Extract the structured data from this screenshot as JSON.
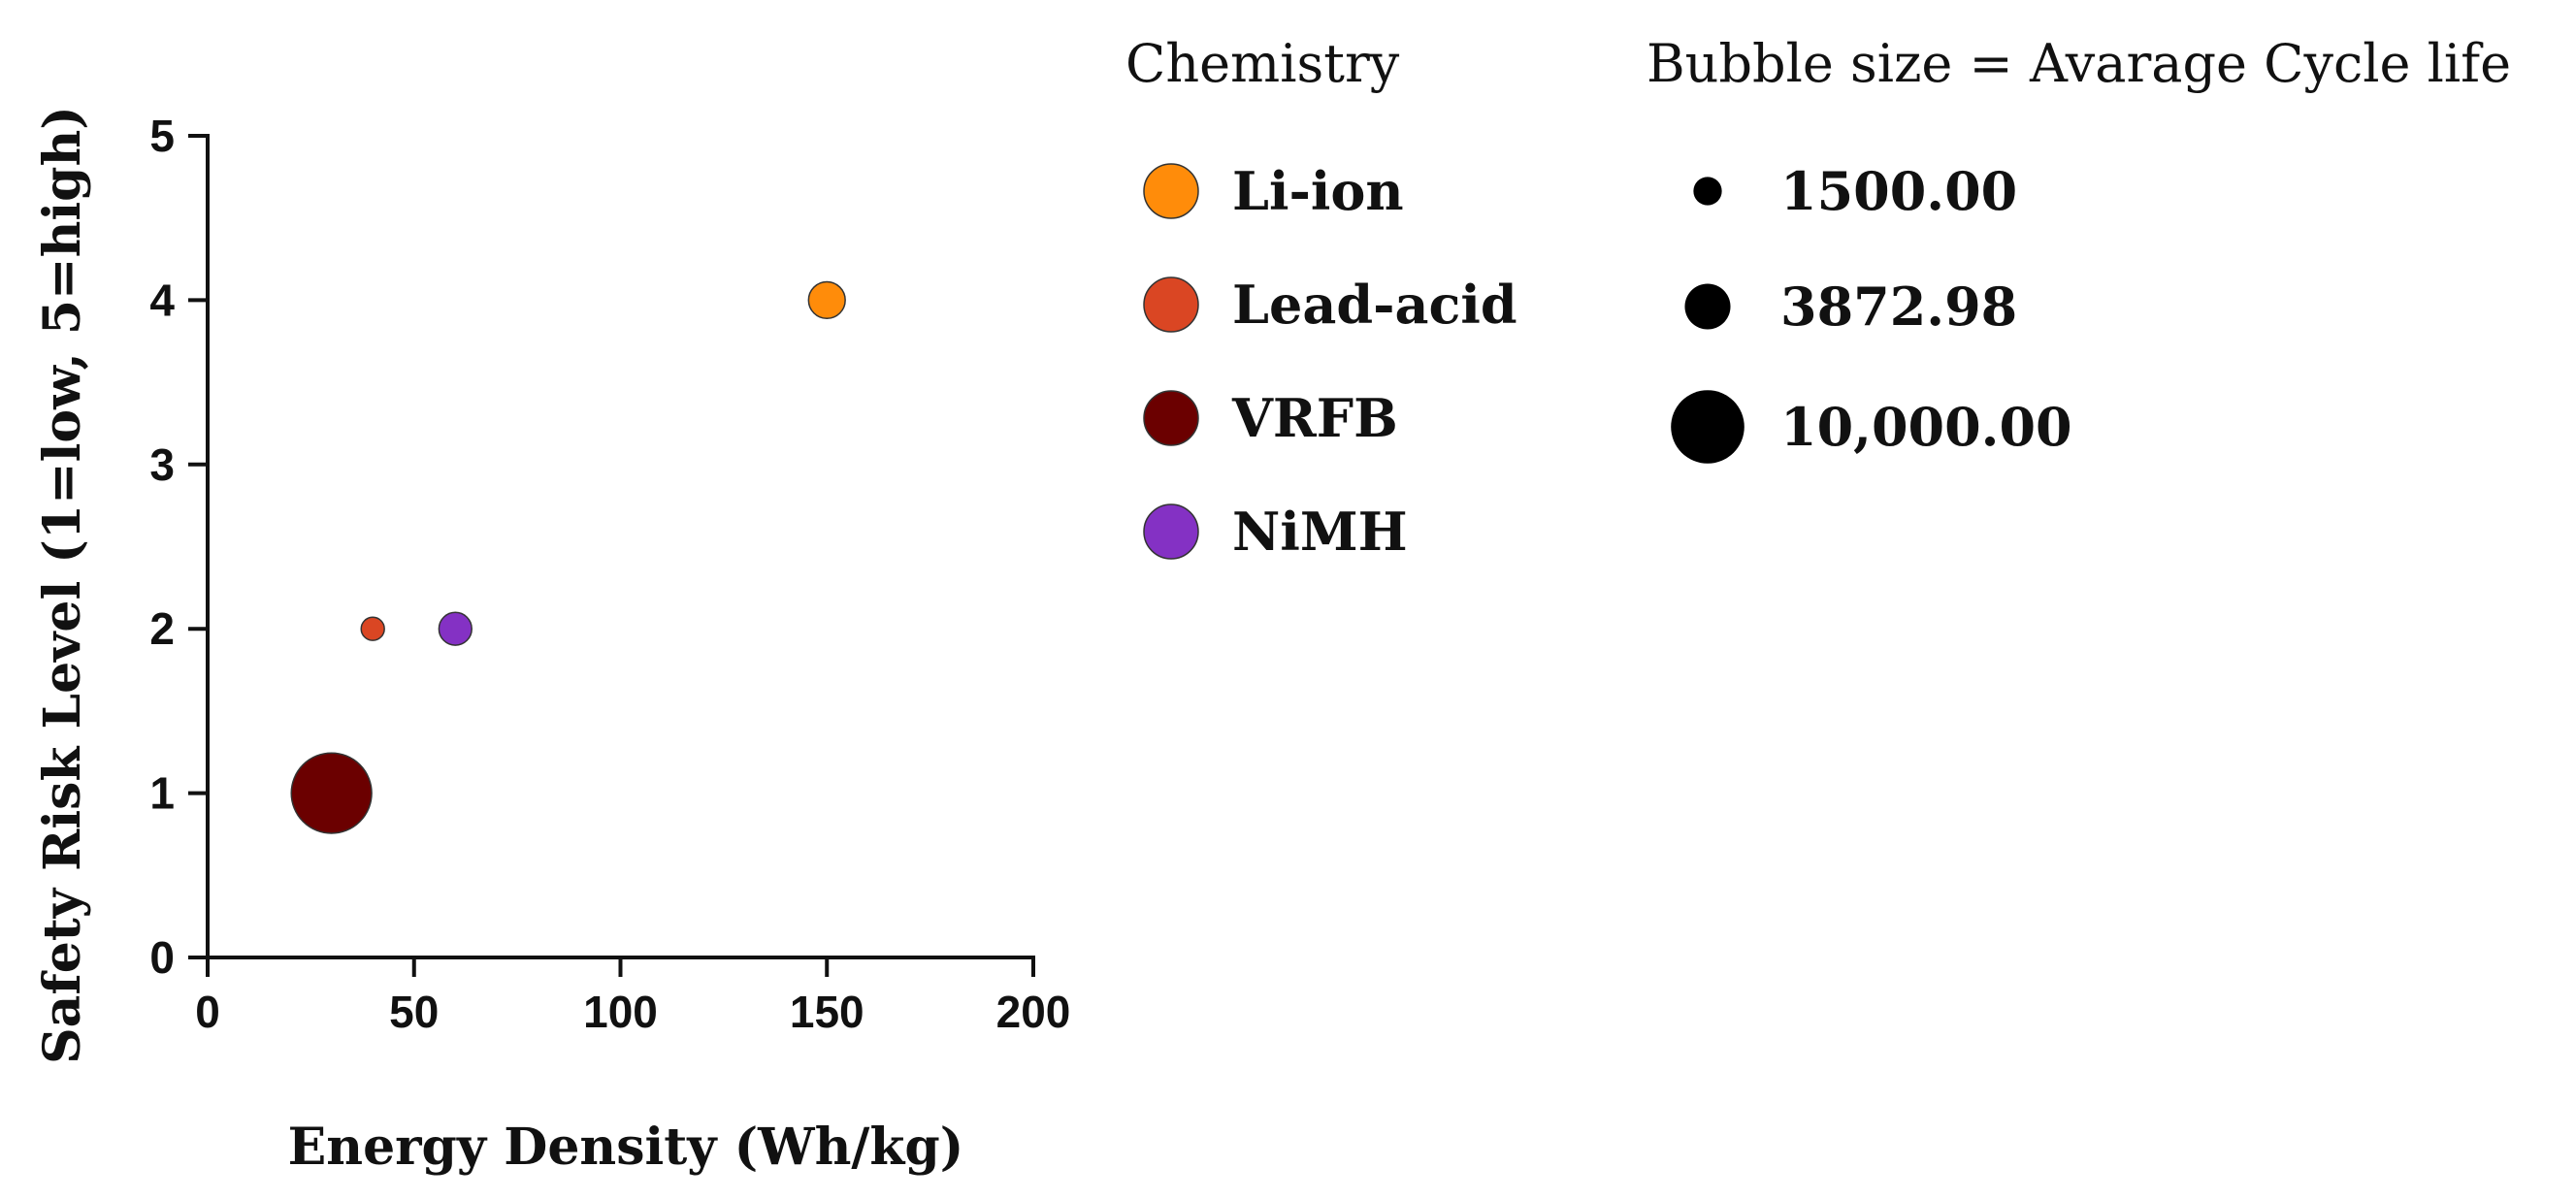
{
  "chart_data": {
    "type": "scatter",
    "xlabel": "Energy Density (Wh/kg)",
    "ylabel": "Safety Risk Level (1=low, 5=high)",
    "xlim": [
      0,
      200
    ],
    "ylim": [
      0,
      5
    ],
    "x_ticks": [
      "0",
      "50",
      "100",
      "150",
      "200"
    ],
    "y_ticks": [
      "0",
      "1",
      "2",
      "3",
      "4",
      "5"
    ],
    "grid": false,
    "legend_position": "right",
    "series": [
      {
        "name": "Li-ion",
        "color": "#FF8C0A",
        "x": 150,
        "y": 4,
        "cycle_life": 2500
      },
      {
        "name": "Lead-acid",
        "color": "#DA4623",
        "x": 40,
        "y": 2,
        "cycle_life": 1000
      },
      {
        "name": "VRFB",
        "color": "#6B0000",
        "x": 30,
        "y": 1,
        "cycle_life": 12000
      },
      {
        "name": "NiMH",
        "color": "#8431C4",
        "x": 60,
        "y": 2,
        "cycle_life": 2000
      }
    ],
    "legend": {
      "color_title": "Chemistry",
      "size_title": "Bubble size = Avarage Cycle life",
      "size_entries": [
        {
          "label": "1500.00",
          "value": 1500
        },
        {
          "label": "3872.98",
          "value": 3872.98
        },
        {
          "label": "10,000.00",
          "value": 10000
        }
      ]
    }
  }
}
